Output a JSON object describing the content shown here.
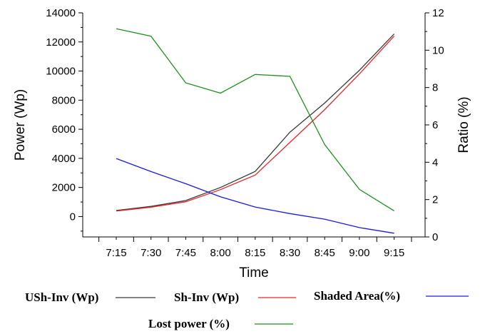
{
  "chart_data": {
    "type": "line",
    "categories": [
      "7:15",
      "7:30",
      "7:45",
      "8:00",
      "8:15",
      "8:30",
      "8:45",
      "9:00",
      "9:15"
    ],
    "xlabel": "Time",
    "ylabel": "Power (Wp)",
    "y2label": "Ratio (%)",
    "ylim": [
      -1400,
      14000
    ],
    "y2lim": [
      0,
      12
    ],
    "yticks": [
      0,
      2000,
      4000,
      6000,
      8000,
      10000,
      12000,
      14000
    ],
    "y2ticks": [
      0,
      2,
      4,
      6,
      8,
      10,
      12
    ],
    "grid": false,
    "legend_position": "bottom",
    "series": [
      {
        "name": "USh-Inv (Wp)",
        "axis": "left",
        "color": "#3a3a3a",
        "values": [
          420,
          700,
          1100,
          2000,
          3100,
          5800,
          7800,
          10050,
          12550
        ]
      },
      {
        "name": "Sh-Inv (Wp)",
        "axis": "left",
        "color": "#e8262b",
        "values": [
          380,
          640,
          1020,
          1850,
          2850,
          5100,
          7350,
          9800,
          12400
        ]
      },
      {
        "name": "Shaded Area(%)",
        "axis": "right",
        "color": "#1a1ae6",
        "values": [
          4.2,
          3.5,
          2.85,
          2.15,
          1.6,
          1.25,
          0.95,
          0.5,
          0.2
        ]
      },
      {
        "name": "Lost power (%)",
        "axis": "right",
        "color": "#1f8f1f",
        "values": [
          11.15,
          10.75,
          8.25,
          7.7,
          8.7,
          8.6,
          4.95,
          2.55,
          1.4
        ]
      }
    ]
  }
}
